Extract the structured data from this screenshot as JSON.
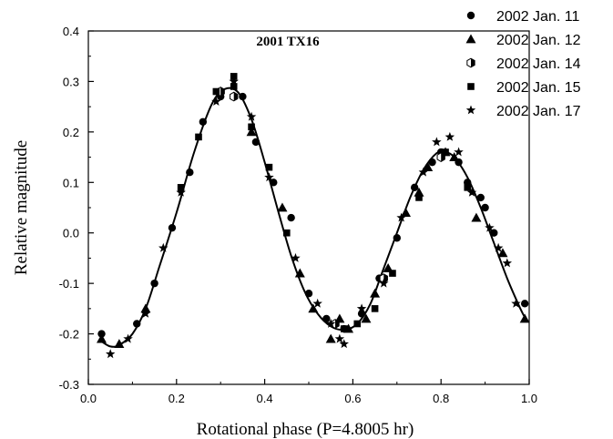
{
  "chart_data": {
    "type": "scatter",
    "title": "2001 TX16",
    "xlabel": "Rotational phase (P=4.8005 hr)",
    "ylabel": "Relative magnitude",
    "xlim": [
      0.0,
      1.0
    ],
    "ylim": [
      -0.3,
      0.4
    ],
    "x_ticks": [
      "0.0",
      "0.2",
      "0.4",
      "0.6",
      "0.8",
      "1.0"
    ],
    "y_ticks": [
      "-0.3",
      "-0.2",
      "-0.1",
      "0.0",
      "0.1",
      "0.2",
      "0.3",
      "0.4"
    ],
    "y_tick_values": [
      -0.3,
      -0.2,
      -0.1,
      0.0,
      0.1,
      0.2,
      0.3,
      0.4
    ],
    "x_tick_values": [
      0.0,
      0.2,
      0.4,
      0.6,
      0.8,
      1.0
    ],
    "legend_position": "top-right",
    "grid": false,
    "series": [
      {
        "name": "2002 Jan. 11",
        "marker": "circle",
        "points": [
          [
            0.03,
            -0.2
          ],
          [
            0.11,
            -0.18
          ],
          [
            0.15,
            -0.1
          ],
          [
            0.19,
            0.01
          ],
          [
            0.23,
            0.12
          ],
          [
            0.26,
            0.22
          ],
          [
            0.3,
            0.27
          ],
          [
            0.35,
            0.27
          ],
          [
            0.38,
            0.18
          ],
          [
            0.42,
            0.1
          ],
          [
            0.46,
            0.03
          ],
          [
            0.5,
            -0.12
          ],
          [
            0.54,
            -0.17
          ],
          [
            0.58,
            -0.19
          ],
          [
            0.62,
            -0.16
          ],
          [
            0.66,
            -0.09
          ],
          [
            0.7,
            -0.01
          ],
          [
            0.74,
            0.09
          ],
          [
            0.78,
            0.14
          ],
          [
            0.8,
            0.16
          ],
          [
            0.84,
            0.14
          ],
          [
            0.86,
            0.1
          ],
          [
            0.89,
            0.07
          ],
          [
            0.9,
            0.05
          ],
          [
            0.92,
            0.0
          ],
          [
            0.99,
            -0.14
          ]
        ]
      },
      {
        "name": "2002 Jan. 12",
        "marker": "triangle",
        "points": [
          [
            0.03,
            -0.21
          ],
          [
            0.07,
            -0.22
          ],
          [
            0.13,
            -0.15
          ],
          [
            0.37,
            0.2
          ],
          [
            0.44,
            0.05
          ],
          [
            0.48,
            -0.08
          ],
          [
            0.51,
            -0.15
          ],
          [
            0.55,
            -0.21
          ],
          [
            0.57,
            -0.17
          ],
          [
            0.59,
            -0.19
          ],
          [
            0.63,
            -0.17
          ],
          [
            0.65,
            -0.12
          ],
          [
            0.68,
            -0.07
          ],
          [
            0.72,
            0.04
          ],
          [
            0.75,
            0.08
          ],
          [
            0.77,
            0.13
          ],
          [
            0.81,
            0.16
          ],
          [
            0.83,
            0.15
          ],
          [
            0.88,
            0.03
          ],
          [
            0.94,
            -0.04
          ],
          [
            0.99,
            -0.17
          ]
        ]
      },
      {
        "name": "2002 Jan. 14",
        "marker": "half-filled-hexagon",
        "points": [
          [
            0.3,
            0.28
          ],
          [
            0.33,
            0.27
          ],
          [
            0.56,
            -0.18
          ],
          [
            0.67,
            -0.09
          ],
          [
            0.8,
            0.15
          ]
        ]
      },
      {
        "name": "2002 Jan. 15",
        "marker": "square",
        "points": [
          [
            0.21,
            0.09
          ],
          [
            0.25,
            0.19
          ],
          [
            0.29,
            0.28
          ],
          [
            0.33,
            0.31
          ],
          [
            0.33,
            0.29
          ],
          [
            0.37,
            0.21
          ],
          [
            0.41,
            0.13
          ],
          [
            0.45,
            0.0
          ],
          [
            0.58,
            -0.19
          ],
          [
            0.61,
            -0.18
          ],
          [
            0.65,
            -0.15
          ],
          [
            0.69,
            -0.08
          ],
          [
            0.75,
            0.07
          ],
          [
            0.81,
            0.16
          ],
          [
            0.86,
            0.09
          ]
        ]
      },
      {
        "name": "2002 Jan. 17",
        "marker": "star",
        "points": [
          [
            0.05,
            -0.24
          ],
          [
            0.09,
            -0.21
          ],
          [
            0.13,
            -0.16
          ],
          [
            0.17,
            -0.03
          ],
          [
            0.21,
            0.08
          ],
          [
            0.29,
            0.26
          ],
          [
            0.33,
            0.3
          ],
          [
            0.37,
            0.23
          ],
          [
            0.41,
            0.11
          ],
          [
            0.47,
            -0.05
          ],
          [
            0.52,
            -0.14
          ],
          [
            0.55,
            -0.18
          ],
          [
            0.57,
            -0.21
          ],
          [
            0.58,
            -0.22
          ],
          [
            0.62,
            -0.15
          ],
          [
            0.67,
            -0.1
          ],
          [
            0.71,
            0.03
          ],
          [
            0.76,
            0.12
          ],
          [
            0.79,
            0.18
          ],
          [
            0.82,
            0.19
          ],
          [
            0.84,
            0.16
          ],
          [
            0.87,
            0.08
          ],
          [
            0.91,
            0.01
          ],
          [
            0.93,
            -0.03
          ],
          [
            0.95,
            -0.06
          ],
          [
            0.97,
            -0.14
          ]
        ]
      }
    ],
    "fit_curve": {
      "type": "line",
      "points": [
        [
          0.03,
          -0.215
        ],
        [
          0.05,
          -0.225
        ],
        [
          0.07,
          -0.222
        ],
        [
          0.1,
          -0.2
        ],
        [
          0.13,
          -0.15
        ],
        [
          0.16,
          -0.07
        ],
        [
          0.2,
          0.04
        ],
        [
          0.24,
          0.16
        ],
        [
          0.28,
          0.255
        ],
        [
          0.31,
          0.285
        ],
        [
          0.34,
          0.278
        ],
        [
          0.37,
          0.225
        ],
        [
          0.4,
          0.14
        ],
        [
          0.43,
          0.045
        ],
        [
          0.46,
          -0.045
        ],
        [
          0.49,
          -0.115
        ],
        [
          0.52,
          -0.16
        ],
        [
          0.55,
          -0.185
        ],
        [
          0.58,
          -0.192
        ],
        [
          0.61,
          -0.18
        ],
        [
          0.64,
          -0.14
        ],
        [
          0.67,
          -0.07
        ],
        [
          0.7,
          0.0
        ],
        [
          0.73,
          0.07
        ],
        [
          0.76,
          0.125
        ],
        [
          0.79,
          0.158
        ],
        [
          0.81,
          0.16
        ],
        [
          0.83,
          0.15
        ],
        [
          0.86,
          0.11
        ],
        [
          0.89,
          0.05
        ],
        [
          0.92,
          -0.02
        ],
        [
          0.95,
          -0.09
        ],
        [
          0.98,
          -0.15
        ],
        [
          0.995,
          -0.175
        ]
      ]
    }
  }
}
